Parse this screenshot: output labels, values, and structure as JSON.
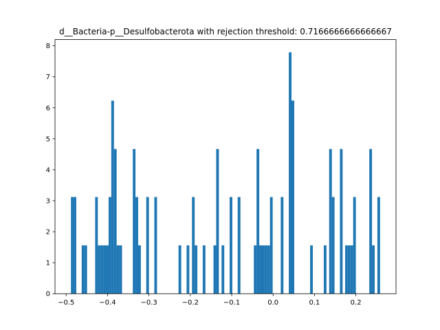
{
  "chart_data": {
    "type": "bar",
    "title": "d__Bacteria-p__Desulfobacterota with rejection threshold: 0.7166666666666667",
    "xlabel": "",
    "ylabel": "",
    "xlim": [
      -0.527,
      0.297
    ],
    "ylim": [
      0,
      8.2
    ],
    "bar_color": "#1f77b4",
    "bin_width": 0.0065,
    "x_ticks": [
      {
        "value": -0.5,
        "label": "−0.5"
      },
      {
        "value": -0.4,
        "label": "−0.4"
      },
      {
        "value": -0.3,
        "label": "−0.3"
      },
      {
        "value": -0.2,
        "label": "−0.2"
      },
      {
        "value": -0.1,
        "label": "−0.1"
      },
      {
        "value": 0.0,
        "label": "0.0"
      },
      {
        "value": 0.1,
        "label": "0.1"
      },
      {
        "value": 0.2,
        "label": "0.2"
      }
    ],
    "y_ticks": [
      {
        "value": 0,
        "label": "0"
      },
      {
        "value": 1,
        "label": "1"
      },
      {
        "value": 2,
        "label": "2"
      },
      {
        "value": 3,
        "label": "3"
      },
      {
        "value": 4,
        "label": "4"
      },
      {
        "value": 5,
        "label": "5"
      },
      {
        "value": 6,
        "label": "6"
      },
      {
        "value": 7,
        "label": "7"
      },
      {
        "value": 8,
        "label": "8"
      }
    ],
    "bins": [
      {
        "x": -0.4885,
        "y": 3.12
      },
      {
        "x": -0.482,
        "y": 3.12
      },
      {
        "x": -0.4625,
        "y": 1.56
      },
      {
        "x": -0.456,
        "y": 1.56
      },
      {
        "x": -0.43,
        "y": 3.12
      },
      {
        "x": -0.4235,
        "y": 1.56
      },
      {
        "x": -0.417,
        "y": 1.56
      },
      {
        "x": -0.4105,
        "y": 1.56
      },
      {
        "x": -0.404,
        "y": 1.56
      },
      {
        "x": -0.3975,
        "y": 3.12
      },
      {
        "x": -0.391,
        "y": 6.23
      },
      {
        "x": -0.3845,
        "y": 4.67
      },
      {
        "x": -0.378,
        "y": 1.56
      },
      {
        "x": -0.3715,
        "y": 1.56
      },
      {
        "x": -0.339,
        "y": 4.67
      },
      {
        "x": -0.3325,
        "y": 3.12
      },
      {
        "x": -0.326,
        "y": 1.56
      },
      {
        "x": -0.3065,
        "y": 3.12
      },
      {
        "x": -0.287,
        "y": 3.12
      },
      {
        "x": -0.2285,
        "y": 1.56
      },
      {
        "x": -0.209,
        "y": 1.56
      },
      {
        "x": -0.196,
        "y": 3.12
      },
      {
        "x": -0.1895,
        "y": 1.56
      },
      {
        "x": -0.17,
        "y": 1.56
      },
      {
        "x": -0.144,
        "y": 1.56
      },
      {
        "x": -0.1375,
        "y": 4.67
      },
      {
        "x": -0.1245,
        "y": 1.56
      },
      {
        "x": -0.105,
        "y": 3.12
      },
      {
        "x": -0.0855,
        "y": 3.12
      },
      {
        "x": -0.0465,
        "y": 1.56
      },
      {
        "x": -0.04,
        "y": 4.67
      },
      {
        "x": -0.0335,
        "y": 1.56
      },
      {
        "x": -0.027,
        "y": 1.56
      },
      {
        "x": -0.0205,
        "y": 1.56
      },
      {
        "x": -0.014,
        "y": 1.56
      },
      {
        "x": -0.0075,
        "y": 3.12
      },
      {
        "x": 0.0185,
        "y": 3.12
      },
      {
        "x": 0.038,
        "y": 7.79
      },
      {
        "x": 0.0445,
        "y": 6.23
      },
      {
        "x": 0.0445,
        "y": 6.23
      },
      {
        "x": 0.0895,
        "y": 1.56
      },
      {
        "x": 0.1225,
        "y": 1.56
      },
      {
        "x": 0.1355,
        "y": 4.67
      },
      {
        "x": 0.142,
        "y": 3.12
      },
      {
        "x": 0.1615,
        "y": 4.67
      },
      {
        "x": 0.174,
        "y": 1.56
      },
      {
        "x": 0.1805,
        "y": 1.56
      },
      {
        "x": 0.187,
        "y": 1.56
      },
      {
        "x": 0.1935,
        "y": 3.12
      },
      {
        "x": 0.2325,
        "y": 4.67
      },
      {
        "x": 0.239,
        "y": 1.56
      },
      {
        "x": 0.252,
        "y": 3.12
      }
    ]
  }
}
